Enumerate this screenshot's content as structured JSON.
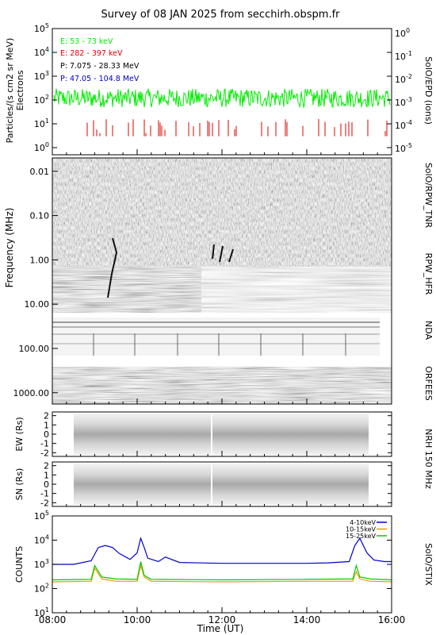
{
  "title": "Survey of 08 JAN 2025 from secchirh.obspm.fr",
  "colors": {
    "electrons_low": "#00ee00",
    "electrons_high": "#dd0000",
    "protons_low": "#000000",
    "protons_high": "#0000cc",
    "stix_4_10": "#0000cc",
    "stix_10_15": "#ff9900",
    "stix_15_25": "#00cc00"
  },
  "chart_data": [
    {
      "type": "line",
      "panel": "epd",
      "ylabel": "Particles/(s cm2 sr MeV)",
      "ylabel2": "Electrons",
      "right_label": "SolO/EPD (ions)",
      "yscale": "log",
      "ylim": [
        0.5,
        100000
      ],
      "y_ticks": [
        "10^0",
        "10^1",
        "10^2",
        "10^3",
        "10^4",
        "10^5"
      ],
      "y2_ticks": [
        "10^-5",
        "10^-4",
        "10^-3",
        "10^-2",
        "10^-1",
        "10^0"
      ],
      "legend": [
        "E: 53 - 73 keV",
        "E: 282 - 397 keV",
        "P: 7.075 - 28.33 MeV",
        "P: 47.05 - 104.8 MeV"
      ],
      "series": [
        {
          "name": "E: 53 - 73 keV",
          "typical": 120,
          "range": [
            50,
            300
          ]
        },
        {
          "name": "E: 282 - 397 keV",
          "typical": 10,
          "note_spikes": "sporadic"
        }
      ]
    },
    {
      "type": "heatmap",
      "panel": "radio",
      "ylabel": "Frequency (MHz)",
      "yscale": "log",
      "ylim": [
        0.005,
        1800
      ],
      "y_ticks": [
        "0.01",
        "0.10",
        "1.00",
        "10.00",
        "100.00",
        "1000.00"
      ],
      "right_labels": [
        "SolO/RPW_TNR",
        "RPW_HFR",
        "NDA",
        "ORFEES"
      ]
    },
    {
      "type": "heatmap",
      "panel": "nrh_ew",
      "ylabel": "EW (Rs)",
      "ylim": [
        -2.4,
        2.4
      ],
      "y_ticks": [
        "2",
        "1",
        "0",
        "-1",
        "-2"
      ],
      "right_label": "NRH 150 MHz"
    },
    {
      "type": "heatmap",
      "panel": "nrh_sn",
      "ylabel": "SN (Rs)",
      "ylim": [
        -2.4,
        2.4
      ],
      "y_ticks": [
        "2",
        "1",
        "0",
        "-1",
        "-2"
      ]
    },
    {
      "type": "line",
      "panel": "stix",
      "ylabel": "COUNTS",
      "right_label": "SolO/STIX",
      "yscale": "log",
      "ylim": [
        10,
        100000
      ],
      "y_ticks": [
        "10^1",
        "10^2",
        "10^3",
        "10^4",
        "10^5"
      ],
      "xlabel": "Time (UT)",
      "x_ticks": [
        "08:00",
        "10:00",
        "12:00",
        "14:00",
        "16:00"
      ],
      "xlim": [
        "08:00",
        "16:00"
      ],
      "series": [
        {
          "name": "4-10keV",
          "x": [
            "08:00",
            "08:30",
            "08:55",
            "09:05",
            "09:15",
            "09:25",
            "09:35",
            "09:50",
            "10:00",
            "10:05",
            "10:10",
            "10:15",
            "10:30",
            "10:40",
            "11:00",
            "12:00",
            "13:00",
            "14:00",
            "14:30",
            "15:00",
            "15:08",
            "15:15",
            "15:25",
            "15:35",
            "15:50",
            "16:00"
          ],
          "values": [
            1000,
            1000,
            1400,
            5000,
            6000,
            5000,
            2800,
            1600,
            3000,
            12000,
            5000,
            1800,
            1300,
            2000,
            1200,
            1100,
            1100,
            1100,
            1150,
            1300,
            6000,
            12000,
            3000,
            1500,
            1300,
            1300
          ]
        },
        {
          "name": "10-15keV",
          "x": [
            "08:00",
            "08:55",
            "09:00",
            "09:10",
            "09:30",
            "10:00",
            "10:05",
            "10:10",
            "10:20",
            "12:00",
            "14:00",
            "15:05",
            "15:10",
            "15:15",
            "15:30",
            "16:00"
          ],
          "values": [
            190,
            200,
            700,
            250,
            200,
            200,
            900,
            300,
            200,
            190,
            200,
            200,
            500,
            250,
            200,
            190
          ]
        },
        {
          "name": "15-25keV",
          "x": [
            "08:00",
            "08:55",
            "09:00",
            "09:10",
            "09:30",
            "10:00",
            "10:05",
            "10:10",
            "10:20",
            "12:00",
            "14:00",
            "15:05",
            "15:10",
            "15:15",
            "15:30",
            "16:00"
          ],
          "values": [
            230,
            240,
            900,
            300,
            250,
            240,
            1300,
            350,
            240,
            230,
            240,
            250,
            900,
            300,
            250,
            230
          ]
        }
      ]
    }
  ]
}
